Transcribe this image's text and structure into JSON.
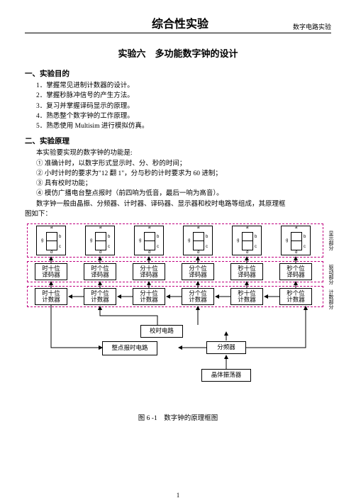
{
  "header": {
    "title": "综合性实验",
    "side": "数字电路实验"
  },
  "exp_title": "实验六　多功能数字钟的设计",
  "s1": {
    "h": "一、实验目的",
    "items": [
      "1．掌握常见进制计数器的设计。",
      "2．掌握秒脉冲信号的产生方法。",
      "3．复习并掌握译码显示的原理。",
      "4．熟悉整个数字钟的工作原理。",
      "5．熟悉使用 Multisim 进行模拟仿真。"
    ]
  },
  "s2": {
    "h": "二、实验原理",
    "intro": "本实验要实现的数字钟的功能是:",
    "items": [
      "① 准确计时，以数字形式显示时、分、秒的时间；",
      "② 小时计时的要求为\"12 翻 1\"，分与秒的计时要求为 60 进制；",
      "③ 具有校时功能；",
      "④ 模仿广播电台整点报时（前四响为低音，最后一响为高音）。"
    ],
    "tail1": "数字钟一般由晶振、分频器、计时器、译码器、显示器和校时电路等组成，其原理框",
    "tail2": "图如下："
  },
  "diagram": {
    "seg_labels": {
      "a": "a",
      "b": "b",
      "c": "c",
      "d": "d",
      "g": "g"
    },
    "cols": [
      {
        "dec": "时十位\n译码器",
        "cnt": "时十位\n计数器"
      },
      {
        "dec": "时个位\n译码器",
        "cnt": "时个位\n计数器"
      },
      {
        "dec": "分十位\n译码器",
        "cnt": "分十位\n计数器"
      },
      {
        "dec": "分个位\n译码器",
        "cnt": "分个位\n计数器"
      },
      {
        "dec": "秒十位\n译码器",
        "cnt": "秒十位\n计数器"
      },
      {
        "dec": "秒个位\n译码器",
        "cnt": "秒个位\n计数器"
      }
    ],
    "cal": "校时电路",
    "alarm": "整点报时电路",
    "div": "分频器",
    "osc": "晶体振荡器",
    "side1": "显示部分",
    "side2": "驱动部分",
    "side3": "计数部分",
    "caption": "图 6 -1　数字钟的原理框图"
  },
  "pagenum": "1"
}
